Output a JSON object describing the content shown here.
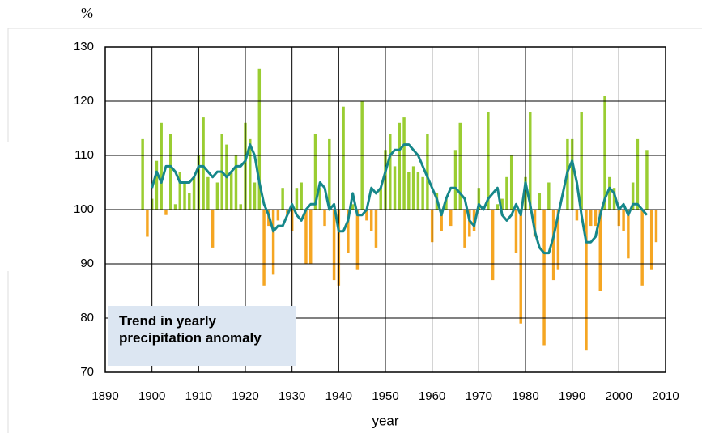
{
  "chart_data": {
    "type": "bar",
    "y_unit": "%",
    "xlabel": "year",
    "annotation": "Trend in yearly precipitation anomaly",
    "xlim": [
      1890,
      2010
    ],
    "xticks": [
      1890,
      1900,
      1910,
      1920,
      1930,
      1940,
      1950,
      1960,
      1970,
      1980,
      1990,
      2000,
      2010
    ],
    "ylim": [
      70,
      130
    ],
    "yticks": [
      70,
      80,
      90,
      100,
      110,
      120,
      130
    ],
    "grid": true,
    "bar_baseline": 100,
    "series": [
      {
        "type": "bar",
        "color": "#9acd32",
        "negative_color": "#f5a623",
        "x": [
          1898,
          1899,
          1900,
          1901,
          1902,
          1903,
          1904,
          1905,
          1906,
          1907,
          1908,
          1909,
          1910,
          1911,
          1912,
          1913,
          1914,
          1915,
          1916,
          1917,
          1918,
          1919,
          1920,
          1921,
          1922,
          1923,
          1924,
          1925,
          1926,
          1927,
          1928,
          1929,
          1930,
          1931,
          1932,
          1933,
          1934,
          1935,
          1936,
          1937,
          1938,
          1939,
          1940,
          1941,
          1942,
          1943,
          1944,
          1945,
          1946,
          1947,
          1948,
          1949,
          1950,
          1951,
          1952,
          1953,
          1954,
          1955,
          1956,
          1957,
          1958,
          1959,
          1960,
          1961,
          1962,
          1963,
          1964,
          1965,
          1966,
          1967,
          1968,
          1969,
          1970,
          1971,
          1972,
          1973,
          1974,
          1975,
          1976,
          1977,
          1978,
          1979,
          1980,
          1981,
          1982,
          1983,
          1984,
          1985,
          1986,
          1987,
          1988,
          1989,
          1990,
          1991,
          1992,
          1993,
          1994,
          1995,
          1996,
          1997,
          1998,
          1999,
          2000,
          2001,
          2002,
          2003,
          2004,
          2005,
          2006,
          2007,
          2008
        ],
        "values": [
          113,
          95,
          102,
          109,
          116,
          99,
          114,
          101,
          107,
          105,
          103,
          106,
          110,
          117,
          106,
          93,
          105,
          114,
          112,
          107,
          110,
          101,
          116,
          113,
          105,
          126,
          86,
          97,
          88,
          98,
          104,
          99,
          96,
          104,
          105,
          90,
          90,
          114,
          104,
          97,
          113,
          87,
          86,
          119,
          92,
          101,
          89,
          120,
          98,
          96,
          93,
          104,
          111,
          114,
          108,
          116,
          117,
          107,
          108,
          107,
          106,
          114,
          94,
          103,
          96,
          102,
          97,
          111,
          116,
          93,
          95,
          96,
          104,
          100,
          118,
          87,
          101,
          102,
          106,
          110,
          92,
          79,
          106,
          118,
          95,
          103,
          75,
          105,
          87,
          89,
          100,
          113,
          113,
          98,
          118,
          74,
          97,
          97,
          85,
          121,
          106,
          104,
          97,
          96,
          91,
          105,
          113,
          86,
          111,
          89,
          94
        ]
      },
      {
        "type": "line",
        "color": "#16878a",
        "x": [
          1900,
          1901,
          1902,
          1903,
          1904,
          1905,
          1906,
          1907,
          1908,
          1909,
          1910,
          1911,
          1912,
          1913,
          1914,
          1915,
          1916,
          1917,
          1918,
          1919,
          1920,
          1921,
          1922,
          1923,
          1924,
          1925,
          1926,
          1927,
          1928,
          1929,
          1930,
          1931,
          1932,
          1933,
          1934,
          1935,
          1936,
          1937,
          1938,
          1939,
          1940,
          1941,
          1942,
          1943,
          1944,
          1945,
          1946,
          1947,
          1948,
          1949,
          1950,
          1951,
          1952,
          1953,
          1954,
          1955,
          1956,
          1957,
          1958,
          1959,
          1960,
          1961,
          1962,
          1963,
          1964,
          1965,
          1966,
          1967,
          1968,
          1969,
          1970,
          1971,
          1972,
          1973,
          1974,
          1975,
          1976,
          1977,
          1978,
          1979,
          1980,
          1981,
          1982,
          1983,
          1984,
          1985,
          1986,
          1987,
          1988,
          1989,
          1990,
          1991,
          1992,
          1993,
          1994,
          1995,
          1996,
          1997,
          1998,
          1999,
          2000,
          2001,
          2002,
          2003,
          2004,
          2005,
          2006
        ],
        "values": [
          104,
          107,
          105,
          108,
          108,
          107,
          105,
          105,
          105,
          106,
          108,
          108,
          107,
          106,
          107,
          107,
          106,
          107,
          108,
          108,
          109,
          112,
          110,
          105,
          101,
          99,
          96,
          97,
          97,
          99,
          101,
          99,
          98,
          100,
          101,
          101,
          105,
          104,
          100,
          101,
          96,
          96,
          98,
          103,
          99,
          99,
          100,
          104,
          103,
          104,
          107,
          110,
          111,
          111,
          112,
          112,
          111,
          110,
          108,
          106,
          104,
          102,
          99,
          102,
          104,
          104,
          103,
          102,
          98,
          97,
          101,
          100,
          102,
          103,
          104,
          99,
          98,
          99,
          101,
          99,
          105,
          101,
          96,
          93,
          92,
          92,
          95,
          99,
          103,
          107,
          109,
          105,
          99,
          94,
          94,
          95,
          99,
          102,
          104,
          103,
          100,
          101,
          99,
          101,
          101,
          100,
          99
        ]
      }
    ]
  }
}
